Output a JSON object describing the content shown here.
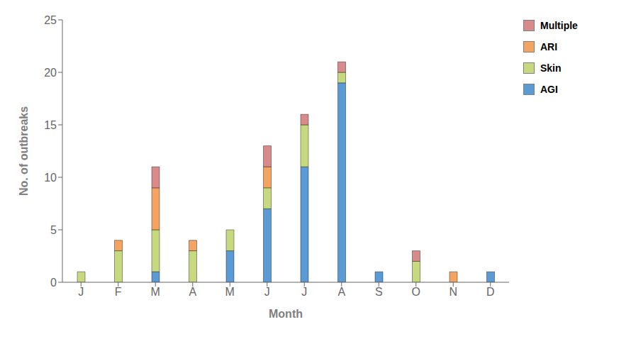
{
  "chart_data": {
    "type": "bar",
    "stacked": true,
    "categories": [
      "J",
      "F",
      "M",
      "A",
      "M",
      "J",
      "J",
      "A",
      "S",
      "O",
      "N",
      "D"
    ],
    "series": [
      {
        "name": "AGI",
        "color": "#5B9BD5",
        "values": [
          0,
          0,
          1,
          0,
          3,
          7,
          11,
          19,
          1,
          0,
          0,
          1
        ]
      },
      {
        "name": "Skin",
        "color": "#C6D97F",
        "values": [
          1,
          3,
          4,
          3,
          2,
          2,
          4,
          1,
          0,
          2,
          0,
          0
        ]
      },
      {
        "name": "ARI",
        "color": "#F4A460",
        "values": [
          0,
          1,
          4,
          1,
          0,
          2,
          0,
          0,
          0,
          0,
          1,
          0
        ]
      },
      {
        "name": "Multiple",
        "color": "#D98B8B",
        "values": [
          0,
          0,
          2,
          0,
          0,
          2,
          1,
          1,
          0,
          1,
          0,
          0
        ]
      }
    ],
    "xlabel": "Month",
    "ylabel": "No. of outbreaks",
    "ylim": [
      0,
      25
    ],
    "yticks": [
      0,
      5,
      10,
      15,
      20,
      25
    ],
    "grid": false,
    "legend": "right"
  }
}
